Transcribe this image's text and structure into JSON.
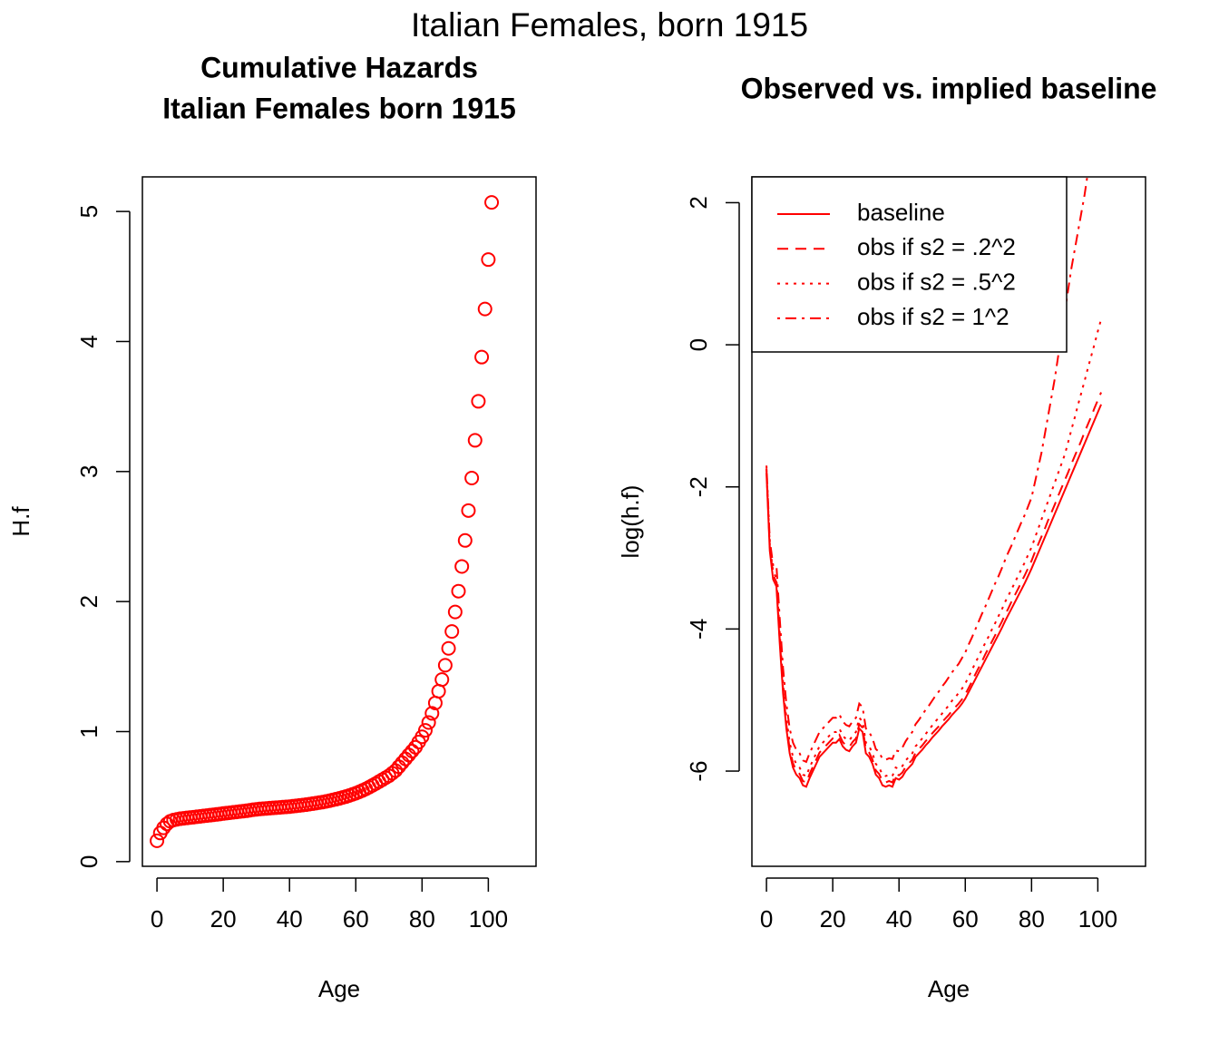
{
  "title": "Italian Females, born 1915",
  "chart_data": [
    {
      "type": "scatter",
      "title": [
        "Cumulative Hazards",
        "Italian Females born 1915"
      ],
      "xlabel": "Age",
      "ylabel": "H.f",
      "color": "#ff0000",
      "marker": "open-circle",
      "xlim": [
        -4.4,
        114.4
      ],
      "ylim": [
        -0.036,
        5.266
      ],
      "xticks": [
        0,
        20,
        40,
        60,
        80,
        100
      ],
      "yticks": [
        0,
        1,
        2,
        3,
        4,
        5
      ],
      "x": [
        0,
        1,
        2,
        3,
        4,
        5,
        6,
        7,
        8,
        9,
        10,
        11,
        12,
        13,
        14,
        15,
        16,
        17,
        18,
        19,
        20,
        21,
        22,
        23,
        24,
        25,
        26,
        27,
        28,
        29,
        30,
        31,
        32,
        33,
        34,
        35,
        36,
        37,
        38,
        39,
        40,
        41,
        42,
        43,
        44,
        45,
        46,
        47,
        48,
        49,
        50,
        51,
        52,
        53,
        54,
        55,
        56,
        57,
        58,
        59,
        60,
        61,
        62,
        63,
        64,
        65,
        66,
        67,
        68,
        69,
        70,
        71,
        72,
        73,
        74,
        75,
        76,
        77,
        78,
        79,
        80,
        81,
        82,
        83,
        84,
        85,
        86,
        87,
        88,
        89,
        90,
        91,
        92,
        93,
        94,
        95,
        96,
        97,
        98,
        99,
        100,
        101
      ],
      "values": [
        0.16,
        0.22,
        0.26,
        0.29,
        0.31,
        0.32,
        0.325,
        0.33,
        0.333,
        0.336,
        0.339,
        0.342,
        0.345,
        0.348,
        0.351,
        0.354,
        0.357,
        0.36,
        0.363,
        0.366,
        0.37,
        0.373,
        0.376,
        0.379,
        0.382,
        0.385,
        0.388,
        0.391,
        0.395,
        0.399,
        0.402,
        0.405,
        0.407,
        0.409,
        0.411,
        0.413,
        0.415,
        0.417,
        0.419,
        0.421,
        0.423,
        0.426,
        0.429,
        0.432,
        0.435,
        0.438,
        0.442,
        0.446,
        0.45,
        0.454,
        0.458,
        0.463,
        0.468,
        0.474,
        0.48,
        0.486,
        0.493,
        0.5,
        0.508,
        0.517,
        0.526,
        0.536,
        0.547,
        0.559,
        0.572,
        0.586,
        0.6,
        0.615,
        0.63,
        0.645,
        0.66,
        0.68,
        0.7,
        0.73,
        0.76,
        0.79,
        0.82,
        0.85,
        0.88,
        0.92,
        0.96,
        1.01,
        1.07,
        1.14,
        1.22,
        1.31,
        1.4,
        1.51,
        1.64,
        1.77,
        1.92,
        2.08,
        2.27,
        2.47,
        2.7,
        2.95,
        3.24,
        3.54,
        3.88,
        4.25,
        4.63,
        5.07
      ]
    },
    {
      "type": "line",
      "title": "Observed vs. implied baseline",
      "xlabel": "Age",
      "ylabel": "log(h.f)",
      "legend": "top-left",
      "xlim": [
        -4.4,
        114.4
      ],
      "ylim": [
        -7.34,
        2.363
      ],
      "xticks": [
        0,
        20,
        40,
        60,
        80,
        100
      ],
      "yticks": [
        -6,
        -4,
        -2,
        0,
        2
      ],
      "x": [
        0,
        1,
        2,
        3,
        4,
        5,
        6,
        7,
        8,
        9,
        10,
        11,
        12,
        13,
        14,
        15,
        16,
        17,
        18,
        19,
        20,
        21,
        22,
        23,
        24,
        25,
        26,
        27,
        28,
        29,
        30,
        31,
        32,
        33,
        34,
        35,
        36,
        37,
        38,
        39,
        40,
        41,
        42,
        43,
        44,
        45,
        46,
        47,
        48,
        49,
        50,
        51,
        52,
        53,
        54,
        55,
        56,
        57,
        58,
        59,
        60,
        61,
        62,
        63,
        64,
        65,
        66,
        67,
        68,
        69,
        70,
        71,
        72,
        73,
        74,
        75,
        76,
        77,
        78,
        79,
        80,
        81,
        82,
        83,
        84,
        85,
        86,
        87,
        88,
        89,
        90,
        91,
        92,
        93,
        94,
        95,
        96,
        97,
        98,
        99,
        100,
        101
      ],
      "series": [
        {
          "name": "baseline",
          "color": "#ff0000",
          "linestyle": "solid",
          "values": [
            -1.8,
            -2.9,
            -3.3,
            -3.4,
            -4.2,
            -4.9,
            -5.4,
            -5.75,
            -5.95,
            -6.05,
            -6.1,
            -6.2,
            -6.22,
            -6.1,
            -6.0,
            -5.9,
            -5.8,
            -5.75,
            -5.7,
            -5.65,
            -5.6,
            -5.6,
            -5.55,
            -5.65,
            -5.7,
            -5.72,
            -5.65,
            -5.6,
            -5.4,
            -5.45,
            -5.75,
            -5.8,
            -5.9,
            -6.05,
            -6.1,
            -6.2,
            -6.22,
            -6.2,
            -6.22,
            -6.1,
            -6.12,
            -6.08,
            -6.0,
            -5.95,
            -5.9,
            -5.8,
            -5.75,
            -5.7,
            -5.64,
            -5.59,
            -5.53,
            -5.48,
            -5.43,
            -5.37,
            -5.32,
            -5.27,
            -5.21,
            -5.16,
            -5.11,
            -5.05,
            -4.98,
            -4.89,
            -4.8,
            -4.71,
            -4.62,
            -4.53,
            -4.44,
            -4.35,
            -4.26,
            -4.17,
            -4.08,
            -3.99,
            -3.89,
            -3.8,
            -3.71,
            -3.62,
            -3.53,
            -3.44,
            -3.35,
            -3.25,
            -3.15,
            -3.04,
            -2.93,
            -2.82,
            -2.71,
            -2.6,
            -2.49,
            -2.38,
            -2.27,
            -2.16,
            -2.05,
            -1.94,
            -1.83,
            -1.72,
            -1.61,
            -1.5,
            -1.39,
            -1.28,
            -1.17,
            -1.06,
            -0.95,
            -0.84
          ]
        },
        {
          "name": "obs if s2 = .2^2",
          "color": "#ff0000",
          "linestyle": "dashed",
          "values": [
            -1.74,
            -2.84,
            -3.24,
            -3.34,
            -4.14,
            -4.84,
            -5.34,
            -5.69,
            -5.89,
            -5.99,
            -6.04,
            -6.14,
            -6.16,
            -6.04,
            -5.94,
            -5.84,
            -5.74,
            -5.69,
            -5.64,
            -5.59,
            -5.54,
            -5.54,
            -5.49,
            -5.59,
            -5.64,
            -5.66,
            -5.59,
            -5.54,
            -5.34,
            -5.39,
            -5.69,
            -5.74,
            -5.84,
            -5.99,
            -6.04,
            -6.14,
            -6.16,
            -6.14,
            -6.16,
            -6.04,
            -6.06,
            -6.02,
            -5.94,
            -5.89,
            -5.84,
            -5.74,
            -5.69,
            -5.64,
            -5.58,
            -5.53,
            -5.47,
            -5.42,
            -5.37,
            -5.31,
            -5.26,
            -5.21,
            -5.15,
            -5.1,
            -5.05,
            -4.99,
            -4.92,
            -4.83,
            -4.74,
            -4.64,
            -4.55,
            -4.46,
            -4.36,
            -4.27,
            -4.18,
            -4.09,
            -3.99,
            -3.9,
            -3.8,
            -3.71,
            -3.61,
            -3.52,
            -3.43,
            -3.33,
            -3.24,
            -3.14,
            -3.04,
            -2.92,
            -2.81,
            -2.7,
            -2.59,
            -2.47,
            -2.36,
            -2.25,
            -2.13,
            -2.02,
            -1.91,
            -1.8,
            -1.68,
            -1.57,
            -1.46,
            -1.35,
            -1.23,
            -1.12,
            -1.01,
            -0.89,
            -0.78,
            -0.67
          ]
        },
        {
          "name": "obs if s2 = .5^2",
          "color": "#ff0000",
          "linestyle": "dotted",
          "values": [
            -1.75,
            -2.82,
            -3.2,
            -3.28,
            -4.05,
            -4.75,
            -5.25,
            -5.6,
            -5.8,
            -5.9,
            -5.95,
            -6.05,
            -6.07,
            -5.95,
            -5.85,
            -5.75,
            -5.65,
            -5.6,
            -5.55,
            -5.5,
            -5.45,
            -5.45,
            -5.4,
            -5.5,
            -5.55,
            -5.57,
            -5.5,
            -5.45,
            -5.25,
            -5.3,
            -5.6,
            -5.65,
            -5.75,
            -5.9,
            -5.95,
            -6.05,
            -6.07,
            -6.05,
            -6.07,
            -5.95,
            -5.97,
            -5.93,
            -5.85,
            -5.8,
            -5.75,
            -5.65,
            -5.6,
            -5.54,
            -5.48,
            -5.42,
            -5.36,
            -5.3,
            -5.25,
            -5.19,
            -5.13,
            -5.08,
            -5.01,
            -4.96,
            -4.9,
            -4.84,
            -4.77,
            -4.67,
            -4.58,
            -4.48,
            -4.39,
            -4.29,
            -4.2,
            -4.11,
            -4.01,
            -3.92,
            -3.82,
            -3.73,
            -3.62,
            -3.53,
            -3.44,
            -3.34,
            -3.25,
            -3.15,
            -3.06,
            -2.95,
            -2.85,
            -2.72,
            -2.59,
            -2.46,
            -2.33,
            -2.2,
            -2.07,
            -1.94,
            -1.81,
            -1.68,
            -1.55,
            -1.38,
            -1.2,
            -1.03,
            -0.85,
            -0.68,
            -0.51,
            -0.33,
            -0.16,
            0.01,
            0.19,
            0.36
          ]
        },
        {
          "name": "obs if s2 = 1^2",
          "color": "#ff0000",
          "linestyle": "dotdash",
          "values": [
            -1.7,
            -2.75,
            -3.1,
            -3.1,
            -3.85,
            -4.55,
            -5.05,
            -5.4,
            -5.6,
            -5.7,
            -5.75,
            -5.85,
            -5.87,
            -5.75,
            -5.65,
            -5.55,
            -5.45,
            -5.4,
            -5.35,
            -5.3,
            -5.25,
            -5.25,
            -5.2,
            -5.3,
            -5.35,
            -5.37,
            -5.3,
            -5.25,
            -5.05,
            -5.1,
            -5.4,
            -5.45,
            -5.54,
            -5.69,
            -5.73,
            -5.83,
            -5.84,
            -5.82,
            -5.83,
            -5.71,
            -5.72,
            -5.67,
            -5.58,
            -5.51,
            -5.45,
            -5.34,
            -5.28,
            -5.21,
            -5.14,
            -5.08,
            -5.01,
            -4.94,
            -4.88,
            -4.81,
            -4.75,
            -4.68,
            -4.61,
            -4.55,
            -4.49,
            -4.41,
            -4.33,
            -4.22,
            -4.12,
            -4.01,
            -3.9,
            -3.79,
            -3.69,
            -3.58,
            -3.47,
            -3.36,
            -3.26,
            -3.15,
            -3.03,
            -2.92,
            -2.82,
            -2.71,
            -2.6,
            -2.49,
            -2.39,
            -2.27,
            -2.15,
            -1.94,
            -1.73,
            -1.52,
            -1.26,
            -1.0,
            -0.74,
            -0.48,
            -0.17,
            0.14,
            0.45,
            0.76,
            1.07,
            1.33,
            1.59,
            1.85,
            2.11,
            2.42,
            null,
            null,
            null,
            null
          ]
        }
      ]
    }
  ]
}
